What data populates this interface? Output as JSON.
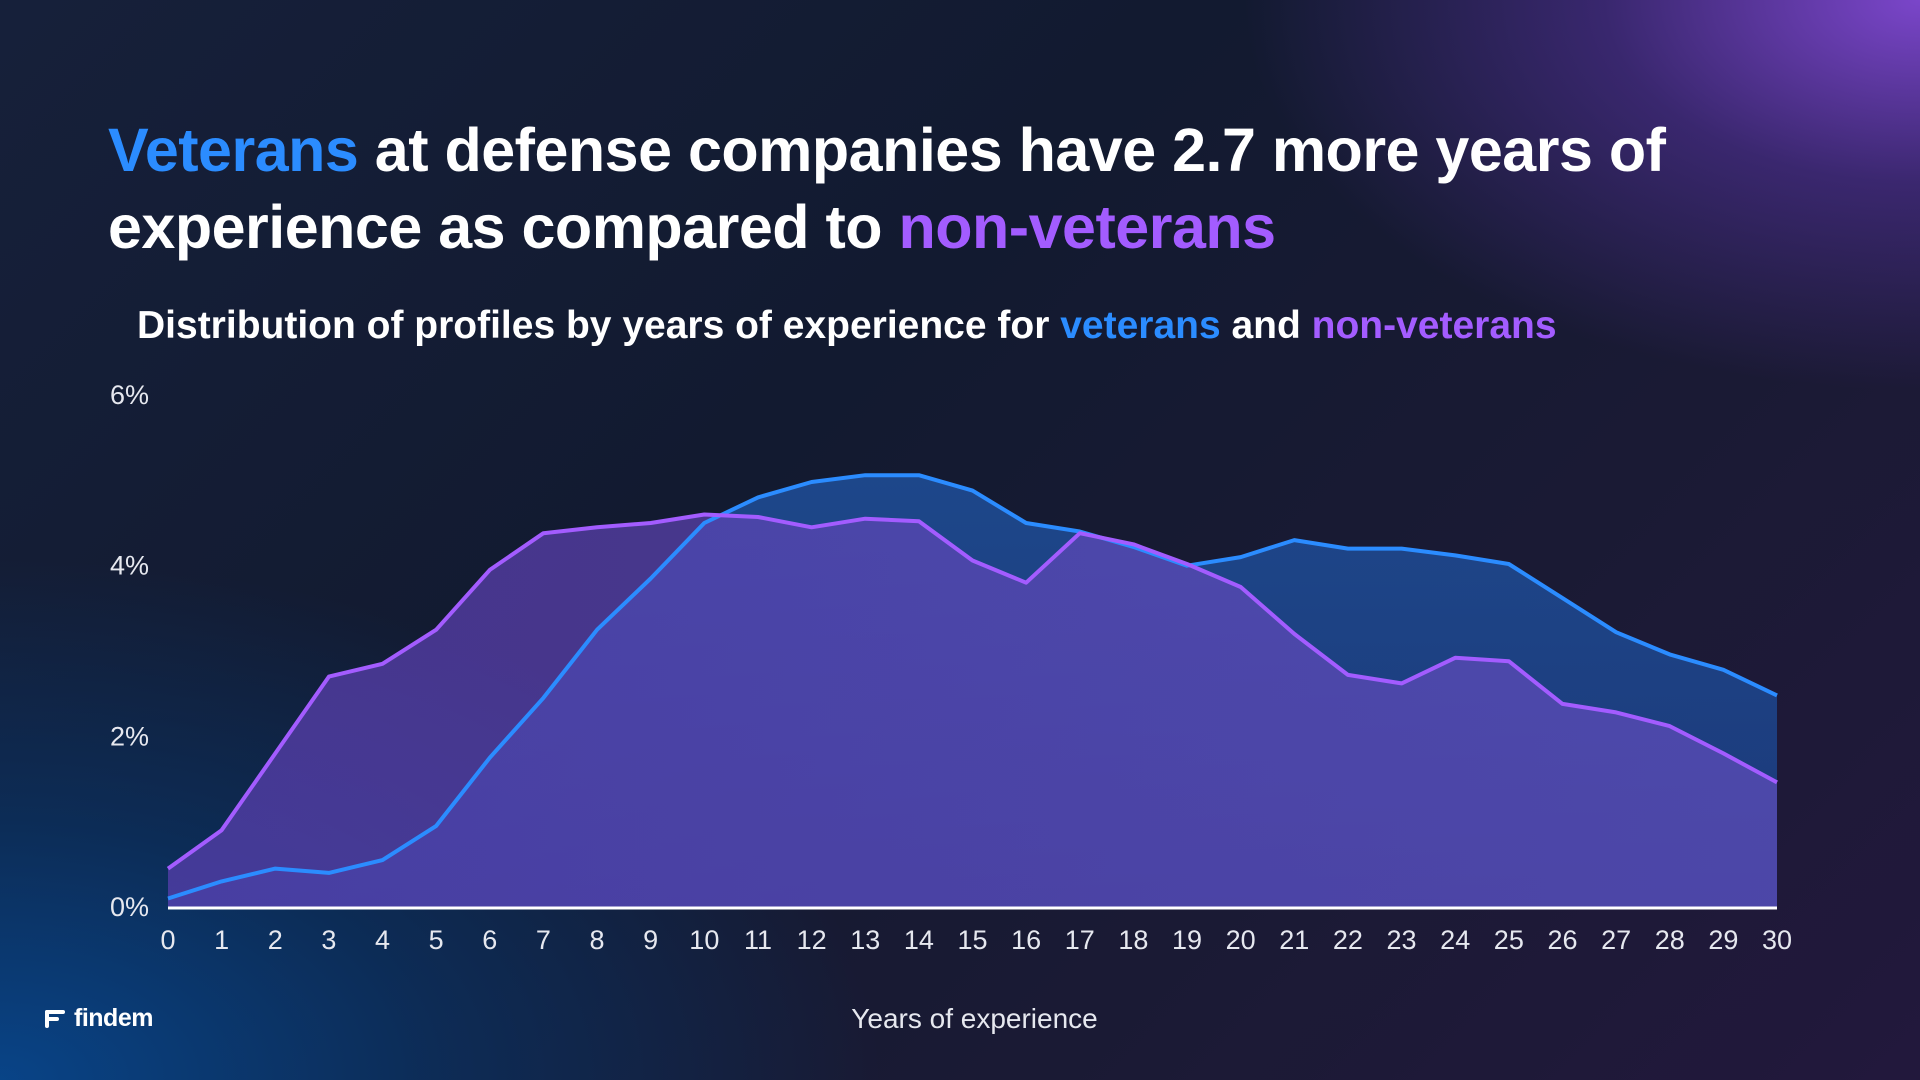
{
  "headline": {
    "part1": "Veterans",
    "part2": " at defense companies have 2.7 more years of experience as compared to ",
    "part3": "non-veterans"
  },
  "subtitle": {
    "part1": "Distribution of profiles by years of experience for ",
    "part2": "veterans",
    "part3": " and ",
    "part4": "non-veterans"
  },
  "colors": {
    "veterans": "#2b8cff",
    "non_veterans": "#a35cff"
  },
  "logo": {
    "icon": "findem-logo-icon",
    "text": "findem"
  },
  "chart_data": {
    "type": "area",
    "title": "Distribution of profiles by years of experience for veterans and non-veterans",
    "xlabel": "Years of experience",
    "ylabel": "",
    "x": [
      0,
      1,
      2,
      3,
      4,
      5,
      6,
      7,
      8,
      9,
      10,
      11,
      12,
      13,
      14,
      15,
      16,
      17,
      18,
      19,
      20,
      21,
      22,
      23,
      24,
      25,
      26,
      27,
      28,
      29,
      30
    ],
    "ylim": [
      0,
      6
    ],
    "yticks": [
      "0%",
      "2%",
      "4%",
      "6%"
    ],
    "ytick_values": [
      0,
      2,
      4,
      6
    ],
    "grid": false,
    "series": [
      {
        "name": "veterans",
        "values": [
          0.1,
          0.3,
          0.45,
          0.4,
          0.55,
          0.95,
          1.75,
          2.45,
          3.25,
          3.85,
          4.5,
          4.8,
          4.98,
          5.06,
          5.06,
          4.88,
          4.5,
          4.4,
          4.22,
          4.0,
          4.1,
          4.3,
          4.2,
          4.2,
          4.12,
          4.02,
          3.62,
          3.22,
          2.96,
          2.78,
          2.48
        ]
      },
      {
        "name": "non-veterans",
        "values": [
          0.45,
          0.9,
          1.8,
          2.7,
          2.85,
          3.25,
          3.95,
          4.38,
          4.45,
          4.5,
          4.6,
          4.57,
          4.45,
          4.55,
          4.52,
          4.06,
          3.8,
          4.38,
          4.25,
          4.02,
          3.75,
          3.2,
          2.72,
          2.62,
          2.92,
          2.88,
          2.38,
          2.28,
          2.12,
          1.8,
          1.46
        ]
      }
    ]
  }
}
